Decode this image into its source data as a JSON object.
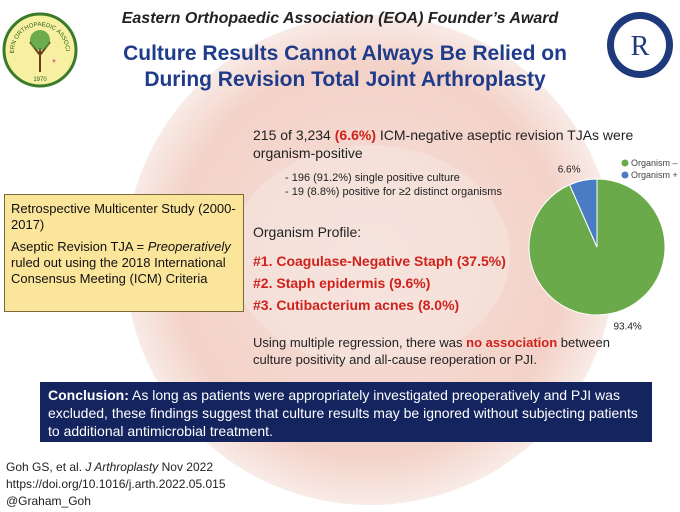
{
  "header": {
    "award": "Eastern Orthopaedic Association (EOA) Founder’s Award",
    "title": [
      "Culture Results Cannot Always Be Relied on",
      "During Revision Total Joint Arthroplasty"
    ],
    "left_logo": {
      "ring": "EASTERN ORTHOPAEDIC ASSOCIATION",
      "year": "1970"
    },
    "right_logo": "R"
  },
  "summary": [
    "215 of 3,234 ",
    "(6.6%)",
    " ICM-negative aseptic revision TJAs were",
    "organism-positive"
  ],
  "bullets": [
    "- 196 (91.2%) single positive culture",
    "- 19 (8.8%) positive for ≥2 distinct organisms"
  ],
  "study_box": {
    "design": "Retrospective Multicenter Study (2000-2017)",
    "definition": [
      "Aseptic Revision TJA = ",
      "Preoperatively",
      " ruled out using the 2018 International Consensus Meeting (ICM) Criteria"
    ]
  },
  "organism_profile": {
    "heading": "Organism Profile:",
    "items": [
      "#1. Coagulase-Negative Staph (37.5%)",
      "#2. Staph epidermis (9.6%)",
      "#3. Cutibacterium acnes (8.0%)"
    ]
  },
  "regression": [
    "Using multiple regression, there was ",
    "no association",
    " between",
    "culture positivity and all-cause reoperation or PJI."
  ],
  "conclusion": [
    "Conclusion:",
    " As long as patients were appropriately investigated preoperatively and PJI was excluded, these findings suggest that culture results may be ignored without subjecting patients to additional antimicrobial treatment."
  ],
  "citation": {
    "line1": [
      "Goh GS, et al. ",
      "J Arthroplasty",
      " Nov 2022"
    ],
    "doi": "https://doi.org/10.1016/j.arth.2022.05.015",
    "handle": "@Graham_Goh"
  },
  "chart_data": {
    "type": "pie",
    "categories": [
      "Organism –",
      "Organism +"
    ],
    "values": [
      93.4,
      6.6
    ],
    "value_labels": [
      "93.4%",
      "6.6%"
    ],
    "colors": [
      "#6aaa4a",
      "#4a7cc4"
    ],
    "legend": "top-right"
  }
}
